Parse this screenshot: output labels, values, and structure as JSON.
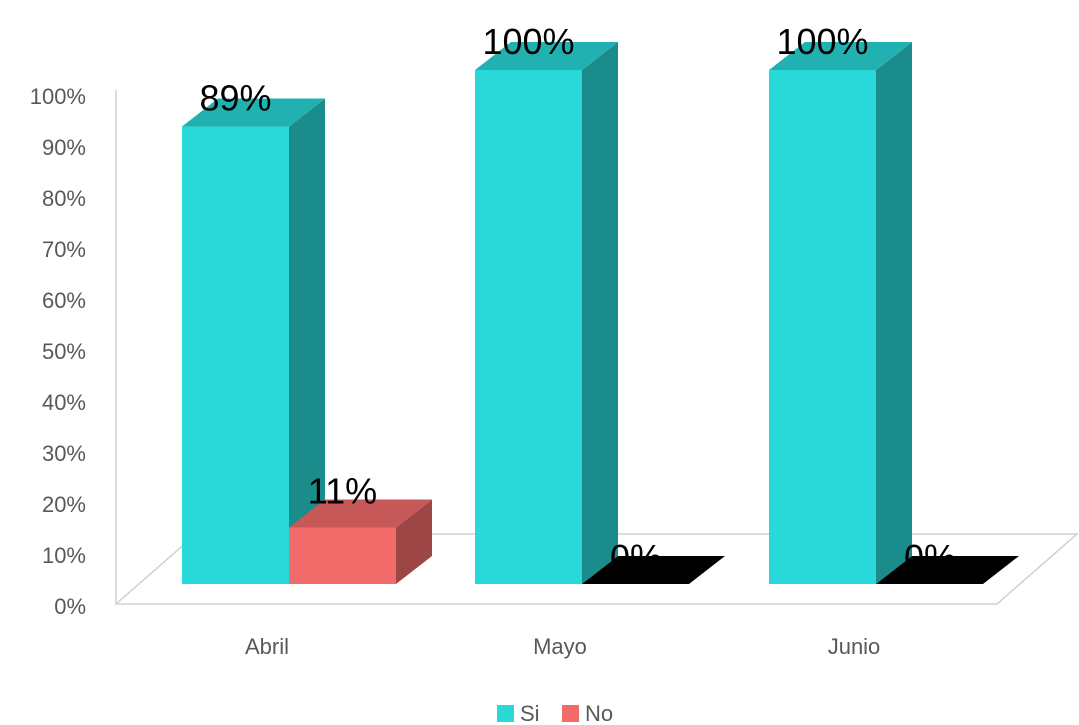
{
  "chart_data": {
    "type": "bar",
    "title": "",
    "xlabel": "",
    "ylabel": "",
    "categories": [
      "Abril",
      "Mayo",
      "Junio"
    ],
    "series": [
      {
        "name": "Si",
        "values": [
          89,
          100,
          100
        ],
        "labels": [
          "89%",
          "100%",
          "100%"
        ],
        "color": "#29D8D8"
      },
      {
        "name": "No",
        "values": [
          11,
          0,
          0
        ],
        "labels": [
          "11%",
          "0%",
          "0%"
        ],
        "color": "#F26B6B"
      }
    ],
    "ylim": [
      0,
      100
    ],
    "yticks": [
      "0%",
      "10%",
      "20%",
      "30%",
      "40%",
      "50%",
      "60%",
      "70%",
      "80%",
      "90%",
      "100%"
    ],
    "legend_position": "bottom",
    "grid": false,
    "style": "3d-column"
  }
}
